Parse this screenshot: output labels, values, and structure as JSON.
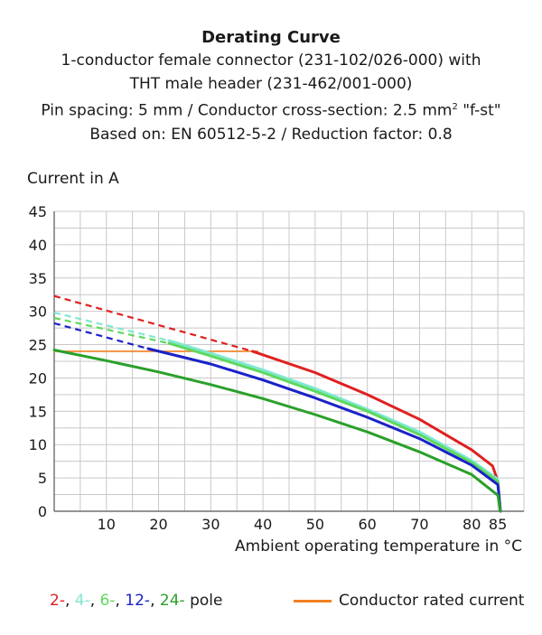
{
  "header": {
    "title": "Derating Curve",
    "line1": "1-conductor female connector (231-102/026-000) with",
    "line2": "THT male header (231-462/001-000)",
    "line3_pre": "Pin spacing: 5 mm / Conductor cross-section: 2.5 mm",
    "line3_sup": "2",
    "line3_post": " \"f-st\"",
    "line4": "Based on: EN 60512-5-2 / Reduction factor: 0.8"
  },
  "legend": {
    "poles": [
      {
        "text": "2-",
        "color": "#e02020"
      },
      {
        "text": ", ",
        "color": "#1a1a1a"
      },
      {
        "text": "4-",
        "color": "#7fe8d0"
      },
      {
        "text": ", ",
        "color": "#1a1a1a"
      },
      {
        "text": "6-",
        "color": "#5ed85e"
      },
      {
        "text": ", ",
        "color": "#1a1a1a"
      },
      {
        "text": "12-",
        "color": "#1a22c8"
      },
      {
        "text": ", ",
        "color": "#1a1a1a"
      },
      {
        "text": "24-",
        "color": "#2aa02a"
      },
      {
        "text": " pole",
        "color": "#1a1a1a"
      }
    ],
    "rated_label": "Conductor rated current",
    "rated_color": "#f08020"
  },
  "chart_data": {
    "type": "line",
    "xlabel": "Ambient operating temperature in °C",
    "ylabel": "Current in A",
    "xlim": [
      0,
      87
    ],
    "ylim": [
      0,
      45
    ],
    "x_ticks": [
      10,
      20,
      30,
      40,
      50,
      60,
      70,
      80,
      85
    ],
    "y_ticks": [
      0,
      5,
      10,
      15,
      20,
      25,
      30,
      35,
      40,
      45
    ],
    "grid": true,
    "series": [
      {
        "name": "2-",
        "color": "#e02020",
        "dashed": [
          [
            0,
            32.3
          ],
          [
            38,
            24
          ]
        ],
        "solid": [
          [
            38,
            24
          ],
          [
            50,
            20.8
          ],
          [
            60,
            17.5
          ],
          [
            70,
            13.8
          ],
          [
            80,
            9.2
          ],
          [
            84,
            6.8
          ],
          [
            85,
            4.5
          ],
          [
            85.5,
            0
          ]
        ]
      },
      {
        "name": "4-",
        "color": "#7fe8d0",
        "dashed": [
          [
            0,
            29.8
          ],
          [
            22,
            25.6
          ]
        ],
        "solid": [
          [
            22,
            25.6
          ],
          [
            30,
            23.7
          ],
          [
            40,
            21.2
          ],
          [
            50,
            18.4
          ],
          [
            60,
            15.3
          ],
          [
            70,
            11.9
          ],
          [
            80,
            7.6
          ],
          [
            85,
            4.8
          ],
          [
            85.5,
            0
          ]
        ]
      },
      {
        "name": "6-",
        "color": "#5ed85e",
        "dashed": [
          [
            0,
            29
          ],
          [
            22,
            25.2
          ]
        ],
        "solid": [
          [
            22,
            25.2
          ],
          [
            30,
            23.3
          ],
          [
            40,
            20.8
          ],
          [
            50,
            18
          ],
          [
            60,
            15
          ],
          [
            70,
            11.5
          ],
          [
            80,
            7.3
          ],
          [
            85,
            4.5
          ],
          [
            85.5,
            0
          ]
        ]
      },
      {
        "name": "12-",
        "color": "#1a22c8",
        "dashed": [
          [
            0,
            28.2
          ],
          [
            18,
            24.4
          ]
        ],
        "solid": [
          [
            18,
            24.4
          ],
          [
            30,
            22.1
          ],
          [
            40,
            19.7
          ],
          [
            50,
            17
          ],
          [
            60,
            14.1
          ],
          [
            70,
            10.9
          ],
          [
            80,
            6.9
          ],
          [
            85,
            4
          ],
          [
            85.5,
            0
          ]
        ]
      },
      {
        "name": "24-",
        "color": "#2aa02a",
        "dashed": [],
        "solid": [
          [
            0,
            24.2
          ],
          [
            10,
            22.6
          ],
          [
            20,
            20.9
          ],
          [
            30,
            19
          ],
          [
            40,
            16.9
          ],
          [
            50,
            14.5
          ],
          [
            60,
            11.9
          ],
          [
            70,
            8.9
          ],
          [
            80,
            5.5
          ],
          [
            85,
            2.4
          ],
          [
            85.5,
            0
          ]
        ]
      },
      {
        "name": "Conductor rated current",
        "color": "#f08020",
        "dashed": [],
        "solid": [
          [
            0,
            24
          ],
          [
            39,
            24
          ]
        ]
      }
    ]
  }
}
